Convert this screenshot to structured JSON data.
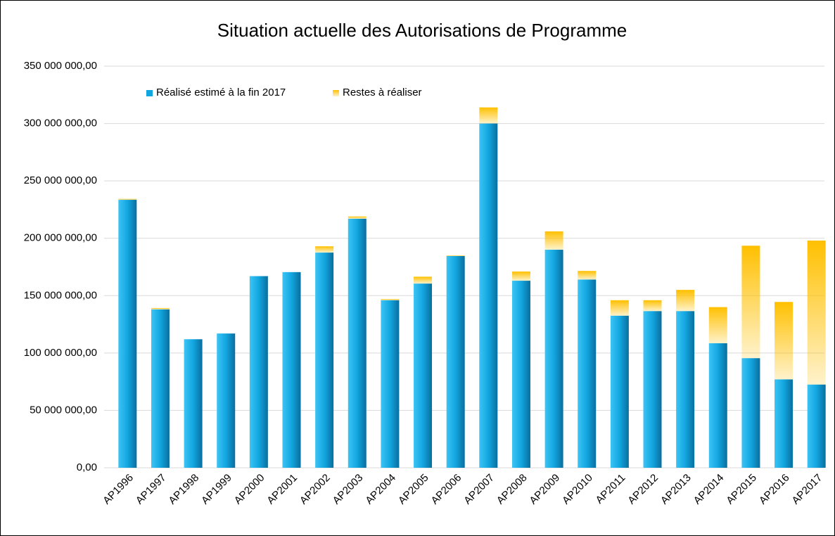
{
  "chart_data": {
    "type": "stacked_bar",
    "title": "Situation actuelle des Autorisations de Programme",
    "categories": [
      "AP1996",
      "AP1997",
      "AP1998",
      "AP1999",
      "AP2000",
      "AP2001",
      "AP2002",
      "AP2003",
      "AP2004",
      "AP2005",
      "AP2006",
      "AP2007",
      "AP2008",
      "AP2009",
      "AP2010",
      "AP2011",
      "AP2012",
      "AP2013",
      "AP2014",
      "AP2015",
      "AP2016",
      "AP2017"
    ],
    "series": [
      {
        "name": "Réalisé estimé à la fin 2017",
        "color": "#12a6e0",
        "values": [
          233500000,
          138000000,
          112000000,
          117000000,
          167000000,
          170500000,
          187500000,
          217000000,
          146000000,
          160500000,
          184500000,
          300000000,
          163000000,
          190000000,
          164000000,
          132500000,
          136500000,
          136500000,
          108500000,
          95500000,
          77000000,
          72500000
        ]
      },
      {
        "name": "Restes à réaliser",
        "color": "#ffc000",
        "values": [
          800000,
          1200000,
          0,
          0,
          0,
          0,
          5500000,
          2000000,
          1000000,
          6000000,
          600000,
          14000000,
          8000000,
          16000000,
          7500000,
          13500000,
          9500000,
          18500000,
          31500000,
          98000000,
          67500000,
          125500000
        ]
      }
    ],
    "ylim": [
      0,
      350000000
    ],
    "yticks": [
      {
        "value": 0,
        "label": "0,00"
      },
      {
        "value": 50000000,
        "label": "50 000 000,00"
      },
      {
        "value": 100000000,
        "label": "100 000 000,00"
      },
      {
        "value": 150000000,
        "label": "150 000 000,00"
      },
      {
        "value": 200000000,
        "label": "200 000 000,00"
      },
      {
        "value": 250000000,
        "label": "250 000 000,00"
      },
      {
        "value": 300000000,
        "label": "300 000 000,00"
      },
      {
        "value": 350000000,
        "label": "350 000 000,00"
      }
    ],
    "grid": true,
    "legend": "top-left"
  }
}
